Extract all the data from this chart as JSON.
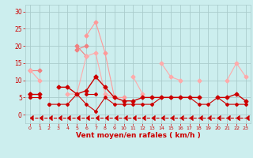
{
  "x": [
    0,
    1,
    2,
    3,
    4,
    5,
    6,
    7,
    8,
    9,
    10,
    11,
    12,
    13,
    14,
    15,
    16,
    17,
    18,
    19,
    20,
    21,
    22,
    23
  ],
  "series": [
    {
      "y": [
        13,
        13,
        null,
        null,
        null,
        19,
        20,
        null,
        null,
        null,
        null,
        null,
        null,
        null,
        null,
        null,
        null,
        null,
        null,
        null,
        null,
        null,
        null,
        null
      ],
      "color": "#f08080",
      "lw": 0.8,
      "marker": "D",
      "ms": 2.5,
      "linestyle": "-"
    },
    {
      "y": [
        null,
        null,
        null,
        null,
        null,
        20,
        17,
        null,
        null,
        null,
        null,
        null,
        null,
        null,
        null,
        null,
        null,
        null,
        null,
        null,
        null,
        null,
        null,
        null
      ],
      "color": "#f08080",
      "lw": 0.8,
      "marker": "D",
      "ms": 2.5,
      "linestyle": "-"
    },
    {
      "y": [
        13,
        10,
        null,
        null,
        6,
        6,
        17,
        18,
        6,
        5,
        null,
        11,
        6,
        null,
        15,
        11,
        10,
        null,
        10,
        null,
        null,
        10,
        15,
        11
      ],
      "color": "#ffaaaa",
      "lw": 0.8,
      "marker": "D",
      "ms": 2.5,
      "linestyle": "-"
    },
    {
      "y": [
        null,
        null,
        null,
        null,
        null,
        null,
        23,
        27,
        18,
        5,
        5,
        null,
        null,
        null,
        null,
        null,
        null,
        null,
        null,
        null,
        null,
        null,
        null,
        null
      ],
      "color": "#ff9999",
      "lw": 0.8,
      "marker": "D",
      "ms": 2.5,
      "linestyle": "-"
    },
    {
      "y": [
        6,
        6,
        null,
        8,
        8,
        6,
        7,
        11,
        8,
        5,
        4,
        4,
        5,
        5,
        5,
        5,
        5,
        5,
        5,
        null,
        5,
        5,
        6,
        4
      ],
      "color": "#cc0000",
      "lw": 1.0,
      "marker": "D",
      "ms": 2.5,
      "linestyle": "-"
    },
    {
      "y": [
        6,
        null,
        null,
        null,
        null,
        null,
        null,
        11,
        null,
        null,
        null,
        null,
        null,
        null,
        null,
        null,
        null,
        null,
        null,
        null,
        null,
        null,
        null,
        null
      ],
      "color": "#cc0000",
      "lw": 1.0,
      "marker": "D",
      "ms": 2.5,
      "linestyle": "-"
    },
    {
      "y": [
        5,
        null,
        3,
        null,
        null,
        null,
        null,
        null,
        null,
        null,
        null,
        null,
        null,
        null,
        null,
        null,
        null,
        null,
        null,
        null,
        null,
        null,
        null,
        null
      ],
      "color": "#cc0000",
      "lw": 0.8,
      "marker": "D",
      "ms": 2,
      "linestyle": "-"
    },
    {
      "y": [
        6,
        null,
        3,
        3,
        3,
        6,
        3,
        1,
        5,
        3,
        3,
        3,
        3,
        3,
        5,
        5,
        5,
        5,
        3,
        3,
        5,
        3,
        3,
        3
      ],
      "color": "#cc0000",
      "lw": 0.8,
      "marker": "D",
      "ms": 2,
      "linestyle": "-"
    },
    {
      "y": [
        5,
        5,
        null,
        null,
        null,
        null,
        6,
        6,
        null,
        null,
        null,
        null,
        null,
        null,
        null,
        null,
        null,
        null,
        null,
        null,
        null,
        null,
        null,
        null
      ],
      "color": "#cc0000",
      "lw": 0.8,
      "marker": "D",
      "ms": 2,
      "linestyle": "-"
    },
    {
      "y": [
        -1,
        -1,
        -1,
        -1,
        -1,
        -1,
        -1,
        -1,
        -1,
        -1,
        -1,
        -1,
        -1,
        -1,
        -1,
        -1,
        -1,
        -1,
        -1,
        -1,
        -1,
        -1,
        -1,
        -1
      ],
      "color": "#cc0000",
      "lw": 0.8,
      "marker": 4,
      "ms": 4,
      "linestyle": "--"
    }
  ],
  "bg_color": "#cceeee",
  "grid_color": "#aacccc",
  "xlabel": "Vent moyen/en rafales ( km/h )",
  "ylabel_ticks": [
    0,
    5,
    10,
    15,
    20,
    25,
    30
  ],
  "xlim": [
    -0.5,
    23.5
  ],
  "ylim": [
    -2.5,
    32
  ],
  "tick_color": "#cc0000",
  "label_color": "#cc0000"
}
